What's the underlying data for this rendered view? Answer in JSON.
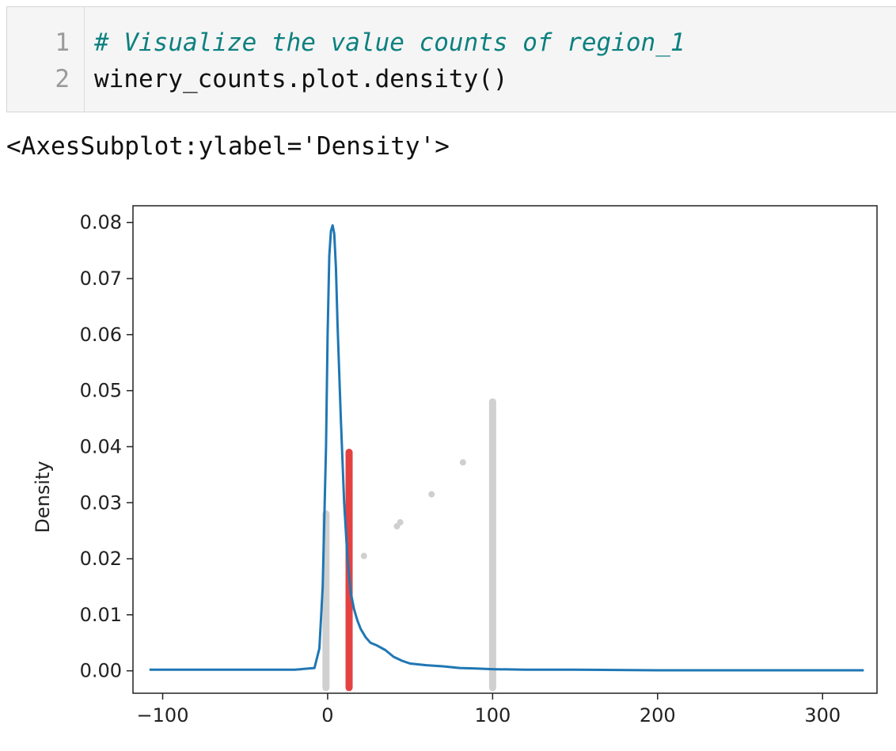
{
  "code_cell": {
    "lines": [
      {
        "number": "1",
        "text": "# Visualize the value counts of region_1"
      },
      {
        "number": "2",
        "text": "winery_counts.plot.density()"
      }
    ]
  },
  "output": {
    "repr": "<AxesSubplot:ylabel='Density'>"
  },
  "chart_data": {
    "type": "line",
    "title": "",
    "xlabel": "",
    "ylabel": "Density",
    "xlim": [
      -118,
      333
    ],
    "ylim": [
      -0.004,
      0.083
    ],
    "xticks": [
      "−100",
      "0",
      "100",
      "200",
      "300"
    ],
    "xtick_values": [
      -100,
      0,
      100,
      200,
      300
    ],
    "yticks": [
      "0.00",
      "0.01",
      "0.02",
      "0.03",
      "0.04",
      "0.05",
      "0.06",
      "0.07",
      "0.08"
    ],
    "ytick_values": [
      0,
      0.01,
      0.02,
      0.03,
      0.04,
      0.05,
      0.06,
      0.07,
      0.08
    ],
    "grid": false,
    "line_color": "#1f77b4",
    "series": [
      {
        "x": [
          -108,
          -60,
          -20,
          -8,
          -5,
          -3,
          -1,
          0,
          1,
          2,
          3,
          4,
          5,
          6,
          8,
          10,
          12,
          14,
          16,
          18,
          20,
          23,
          26,
          30,
          35,
          40,
          45,
          50,
          60,
          70,
          80,
          90,
          100,
          120,
          150,
          200,
          250,
          325
        ],
        "y": [
          0.0002,
          0.0002,
          0.0002,
          0.0005,
          0.004,
          0.015,
          0.04,
          0.06,
          0.074,
          0.0785,
          0.0795,
          0.078,
          0.072,
          0.062,
          0.045,
          0.03,
          0.02,
          0.014,
          0.011,
          0.009,
          0.0075,
          0.006,
          0.005,
          0.0045,
          0.0037,
          0.0025,
          0.0018,
          0.0013,
          0.001,
          0.0008,
          0.0005,
          0.0004,
          0.0003,
          0.0002,
          0.0002,
          0.0001,
          0.0001,
          0.0001
        ]
      }
    ],
    "overlay_marks": [
      {
        "color": "#c8c8c8",
        "x": -1,
        "y_range": [
          -0.003,
          0.028
        ]
      },
      {
        "color": "#e02020",
        "x": 13,
        "y_range": [
          -0.003,
          0.039
        ]
      },
      {
        "color": "#c8c8c8",
        "x": 100,
        "y_range": [
          -0.003,
          0.048
        ]
      },
      {
        "color": "#cfcfcf",
        "points": [
          [
            22,
            0.0205
          ],
          [
            42,
            0.0258
          ],
          [
            44,
            0.0265
          ],
          [
            63,
            0.0315
          ],
          [
            82,
            0.0372
          ]
        ]
      }
    ]
  }
}
